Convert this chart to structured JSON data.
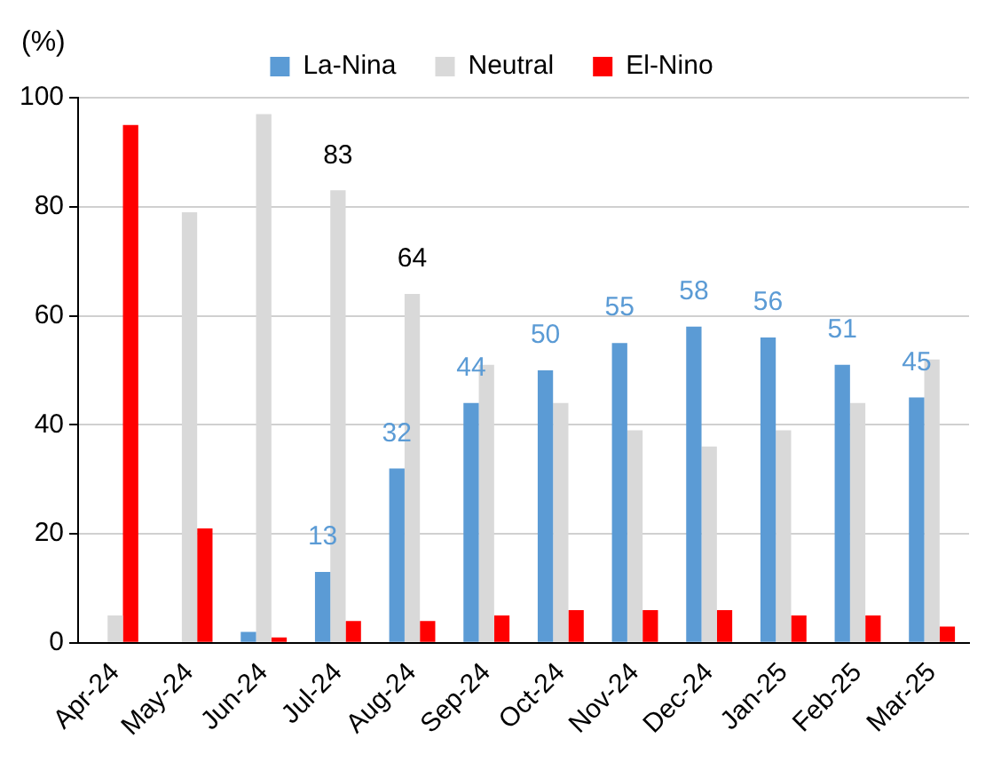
{
  "chart_data": {
    "type": "bar",
    "ylabel": "(%)",
    "categories": [
      "Apr-24",
      "May-24",
      "Jun-24",
      "Jul-24",
      "Aug-24",
      "Sep-24",
      "Oct-24",
      "Nov-24",
      "Dec-24",
      "Jan-25",
      "Feb-25",
      "Mar-25"
    ],
    "series": [
      {
        "name": "La-Nina",
        "color": "#5b9bd5",
        "values": [
          0,
          0,
          2,
          13,
          32,
          44,
          50,
          55,
          58,
          56,
          51,
          45
        ],
        "value_labels": [
          null,
          null,
          null,
          "13",
          "32",
          "44",
          "50",
          "55",
          "58",
          "56",
          "51",
          "45"
        ]
      },
      {
        "name": "Neutral",
        "color": "#d9d9d9",
        "values": [
          5,
          79,
          97,
          83,
          64,
          51,
          44,
          39,
          36,
          39,
          44,
          52
        ],
        "value_labels": [
          null,
          null,
          null,
          "83",
          "64",
          null,
          null,
          null,
          null,
          null,
          null,
          null
        ]
      },
      {
        "name": "El-Nino",
        "color": "#ff0000",
        "values": [
          95,
          21,
          1,
          4,
          4,
          5,
          6,
          6,
          6,
          5,
          5,
          3
        ]
      }
    ],
    "ylim": [
      0,
      100
    ],
    "yticks": [
      0,
      20,
      40,
      60,
      80,
      100
    ],
    "grid": "y",
    "legend": "top"
  }
}
